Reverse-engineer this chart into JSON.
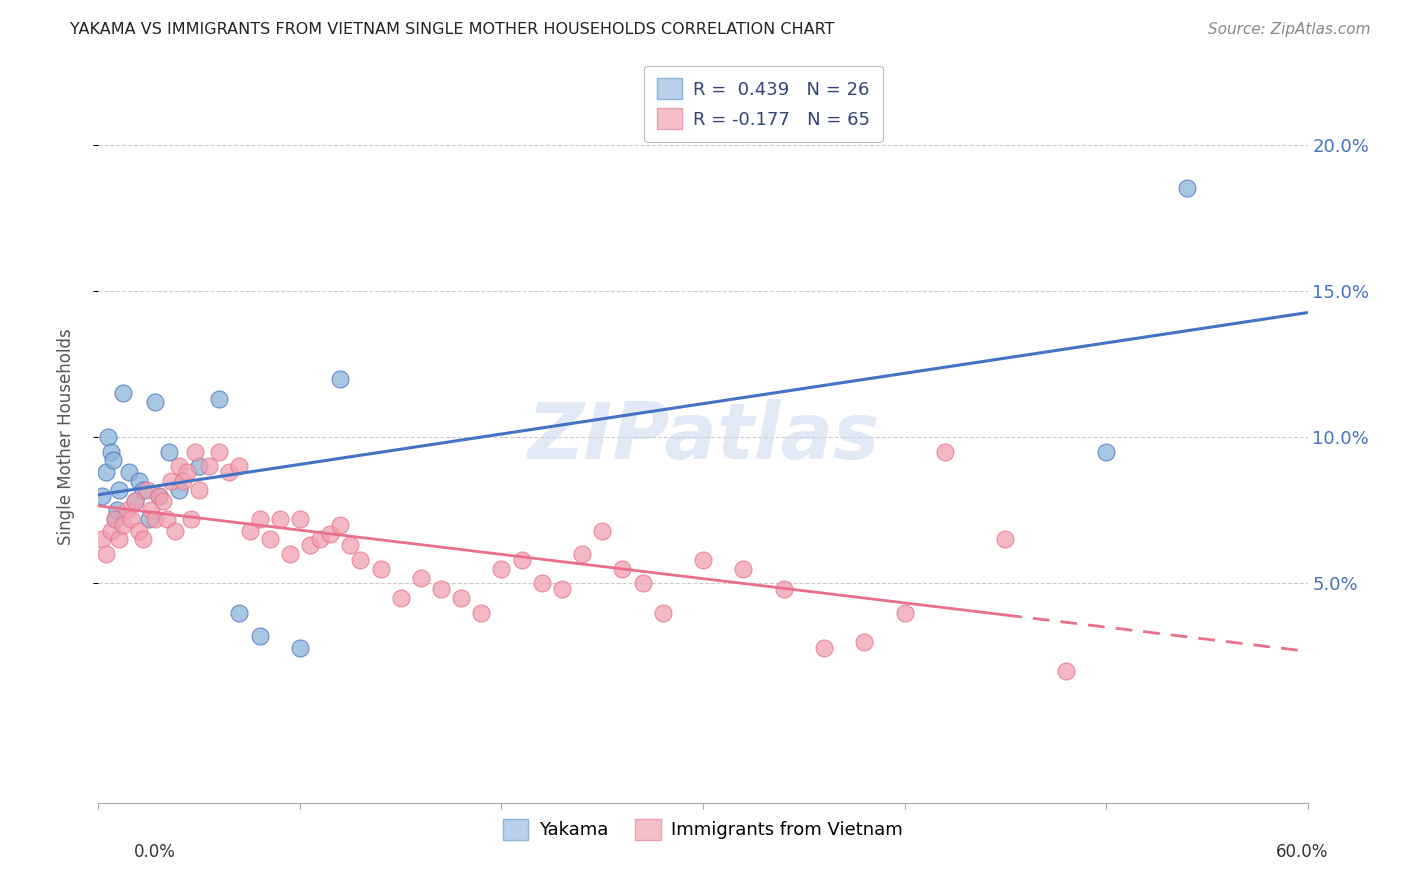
{
  "title": "YAKAMA VS IMMIGRANTS FROM VIETNAM SINGLE MOTHER HOUSEHOLDS CORRELATION CHART",
  "source": "Source: ZipAtlas.com",
  "ylabel": "Single Mother Households",
  "watermark": "ZIPatlas",
  "yakama": {
    "label": "Yakama",
    "R": 0.439,
    "N": 26,
    "color": "#8ab4d8",
    "x": [
      0.002,
      0.004,
      0.005,
      0.006,
      0.007,
      0.008,
      0.009,
      0.01,
      0.012,
      0.015,
      0.018,
      0.02,
      0.022,
      0.025,
      0.028,
      0.03,
      0.035,
      0.04,
      0.05,
      0.06,
      0.07,
      0.08,
      0.1,
      0.12,
      0.5,
      0.54
    ],
    "y": [
      0.08,
      0.088,
      0.1,
      0.095,
      0.092,
      0.072,
      0.075,
      0.082,
      0.115,
      0.088,
      0.078,
      0.085,
      0.082,
      0.072,
      0.112,
      0.08,
      0.095,
      0.082,
      0.09,
      0.113,
      0.04,
      0.032,
      0.028,
      0.12,
      0.095,
      0.185
    ]
  },
  "vietnam": {
    "label": "Immigrants from Vietnam",
    "R": -0.177,
    "N": 65,
    "color": "#f0a0b0",
    "x": [
      0.002,
      0.004,
      0.006,
      0.008,
      0.01,
      0.012,
      0.014,
      0.016,
      0.018,
      0.02,
      0.022,
      0.024,
      0.026,
      0.028,
      0.03,
      0.032,
      0.034,
      0.036,
      0.038,
      0.04,
      0.042,
      0.044,
      0.046,
      0.048,
      0.05,
      0.055,
      0.06,
      0.065,
      0.07,
      0.075,
      0.08,
      0.085,
      0.09,
      0.095,
      0.1,
      0.105,
      0.11,
      0.115,
      0.12,
      0.125,
      0.13,
      0.14,
      0.15,
      0.16,
      0.17,
      0.18,
      0.19,
      0.2,
      0.21,
      0.22,
      0.23,
      0.24,
      0.25,
      0.26,
      0.27,
      0.28,
      0.3,
      0.32,
      0.34,
      0.36,
      0.38,
      0.4,
      0.42,
      0.45,
      0.48
    ],
    "y": [
      0.065,
      0.06,
      0.068,
      0.072,
      0.065,
      0.07,
      0.075,
      0.072,
      0.078,
      0.068,
      0.065,
      0.082,
      0.075,
      0.072,
      0.08,
      0.078,
      0.072,
      0.085,
      0.068,
      0.09,
      0.085,
      0.088,
      0.072,
      0.095,
      0.082,
      0.09,
      0.095,
      0.088,
      0.09,
      0.068,
      0.072,
      0.065,
      0.072,
      0.06,
      0.072,
      0.063,
      0.065,
      0.067,
      0.07,
      0.063,
      0.058,
      0.055,
      0.045,
      0.052,
      0.048,
      0.045,
      0.04,
      0.055,
      0.058,
      0.05,
      0.048,
      0.06,
      0.068,
      0.055,
      0.05,
      0.04,
      0.058,
      0.055,
      0.048,
      0.028,
      0.03,
      0.04,
      0.095,
      0.065,
      0.02
    ]
  },
  "xlim": [
    0.0,
    0.6
  ],
  "ylim": [
    -0.025,
    0.225
  ],
  "yticks": [
    0.05,
    0.1,
    0.15,
    0.2
  ],
  "ytick_labels": [
    "5.0%",
    "10.0%",
    "15.0%",
    "20.0%"
  ],
  "grid_color": "#cccccc",
  "background_color": "#ffffff",
  "line_blue_color": "#4472c4",
  "line_pink_color": "#e8708a",
  "legend_r1_text": "R =  0.439   N = 26",
  "legend_r2_text": "R = -0.177   N = 65",
  "legend_patch_blue": "#b8d0ea",
  "legend_patch_pink": "#f5c0c8"
}
